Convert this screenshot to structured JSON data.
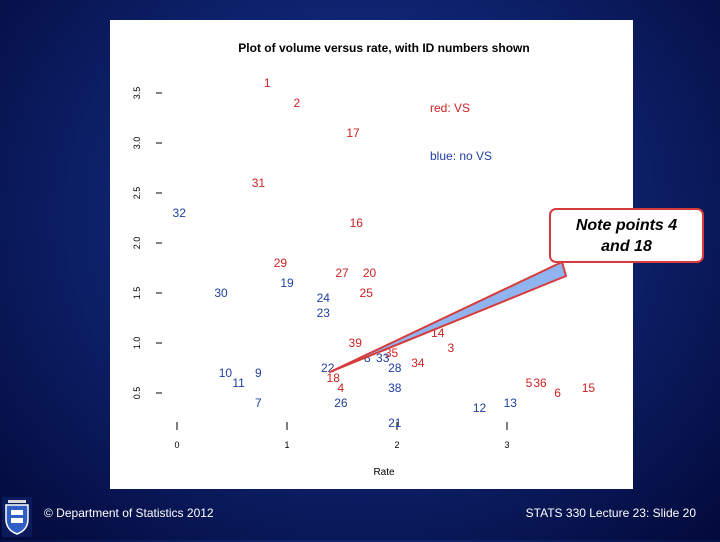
{
  "chart_data": {
    "type": "scatter",
    "title": "Plot of volume versus rate, with ID numbers shown",
    "xlabel": "Rate",
    "ylabel": "",
    "xlim": [
      -0.05,
      3.75
    ],
    "ylim": [
      0.0,
      3.75
    ],
    "x_ticks": [
      "0",
      "1",
      "2",
      "3"
    ],
    "y_ticks": [
      "0.5",
      "1.0",
      "1.5",
      "2.0",
      "2.5",
      "3.0",
      "3.5"
    ],
    "grid": false,
    "legend_position": "top-right",
    "legend": [
      {
        "label": "red:  VS",
        "color": "#cc2222"
      },
      {
        "label": "blue: no VS",
        "color": "#1f3f9f"
      }
    ],
    "series": [
      {
        "name": "VS",
        "color": "#cc2222",
        "points": [
          {
            "id": "1",
            "x": 0.82,
            "y": 3.6
          },
          {
            "id": "2",
            "x": 1.09,
            "y": 3.4
          },
          {
            "id": "17",
            "x": 1.6,
            "y": 3.1
          },
          {
            "id": "31",
            "x": 0.74,
            "y": 2.6
          },
          {
            "id": "16",
            "x": 1.63,
            "y": 2.2
          },
          {
            "id": "29",
            "x": 0.94,
            "y": 1.8
          },
          {
            "id": "27",
            "x": 1.5,
            "y": 1.7
          },
          {
            "id": "20",
            "x": 1.75,
            "y": 1.7
          },
          {
            "id": "25",
            "x": 1.72,
            "y": 1.5
          },
          {
            "id": "14",
            "x": 2.37,
            "y": 1.1
          },
          {
            "id": "39",
            "x": 1.62,
            "y": 1.0
          },
          {
            "id": "35",
            "x": 1.95,
            "y": 0.9
          },
          {
            "id": "18",
            "x": 1.42,
            "y": 0.65
          },
          {
            "id": "4",
            "x": 1.49,
            "y": 0.55
          },
          {
            "id": "5",
            "x": 3.2,
            "y": 0.6
          },
          {
            "id": "36",
            "x": 3.3,
            "y": 0.6
          },
          {
            "id": "6",
            "x": 3.46,
            "y": 0.5
          },
          {
            "id": "15",
            "x": 3.74,
            "y": 0.55
          },
          {
            "id": "3",
            "x": 2.49,
            "y": 0.95
          },
          {
            "id": "34",
            "x": 2.19,
            "y": 0.8
          }
        ]
      },
      {
        "name": "no VS",
        "color": "#1f3f9f",
        "points": [
          {
            "id": "32",
            "x": 0.02,
            "y": 2.3
          },
          {
            "id": "19",
            "x": 1.0,
            "y": 1.6
          },
          {
            "id": "30",
            "x": 0.4,
            "y": 1.5
          },
          {
            "id": "24",
            "x": 1.33,
            "y": 1.45
          },
          {
            "id": "23",
            "x": 1.33,
            "y": 1.3
          },
          {
            "id": "8",
            "x": 1.73,
            "y": 0.85
          },
          {
            "id": "33",
            "x": 1.87,
            "y": 0.85
          },
          {
            "id": "22",
            "x": 1.37,
            "y": 0.75
          },
          {
            "id": "28",
            "x": 1.98,
            "y": 0.75
          },
          {
            "id": "38",
            "x": 1.98,
            "y": 0.55
          },
          {
            "id": "10",
            "x": 0.44,
            "y": 0.7
          },
          {
            "id": "11",
            "x": 0.56,
            "y": 0.6
          },
          {
            "id": "9",
            "x": 0.74,
            "y": 0.7
          },
          {
            "id": "7",
            "x": 0.74,
            "y": 0.4
          },
          {
            "id": "26",
            "x": 1.49,
            "y": 0.4
          },
          {
            "id": "21",
            "x": 1.98,
            "y": 0.2
          },
          {
            "id": "12",
            "x": 2.75,
            "y": 0.35
          },
          {
            "id": "13",
            "x": 3.03,
            "y": 0.4
          }
        ]
      }
    ]
  },
  "callout": {
    "line1": "Note points 4",
    "line2": "and 18"
  },
  "footer": {
    "copyright": "© Department of Statistics 2012",
    "slide_ref": "STATS 330 Lecture 23: Slide 20"
  },
  "colors": {
    "vs": "#cc2222",
    "no_vs": "#1f3f9f",
    "callout_border": "#d63c3c",
    "pointer_fill": "#8fb4f0"
  }
}
